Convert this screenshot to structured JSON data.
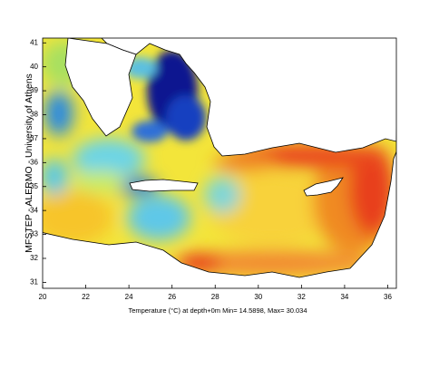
{
  "map": {
    "y_label": "MFSTEP - ALERMO - University of Athens",
    "caption": "Temperature (°C) at depth+0m   Min= 14.5898,  Max= 30.034",
    "xlim": [
      20,
      36.4
    ],
    "ylim": [
      30.75,
      41.2
    ],
    "xticks": [
      20,
      22,
      24,
      26,
      28,
      30,
      32,
      34,
      36
    ],
    "yticks": [
      31,
      32,
      33,
      34,
      35,
      36,
      37,
      38,
      39,
      40,
      41
    ]
  }
}
